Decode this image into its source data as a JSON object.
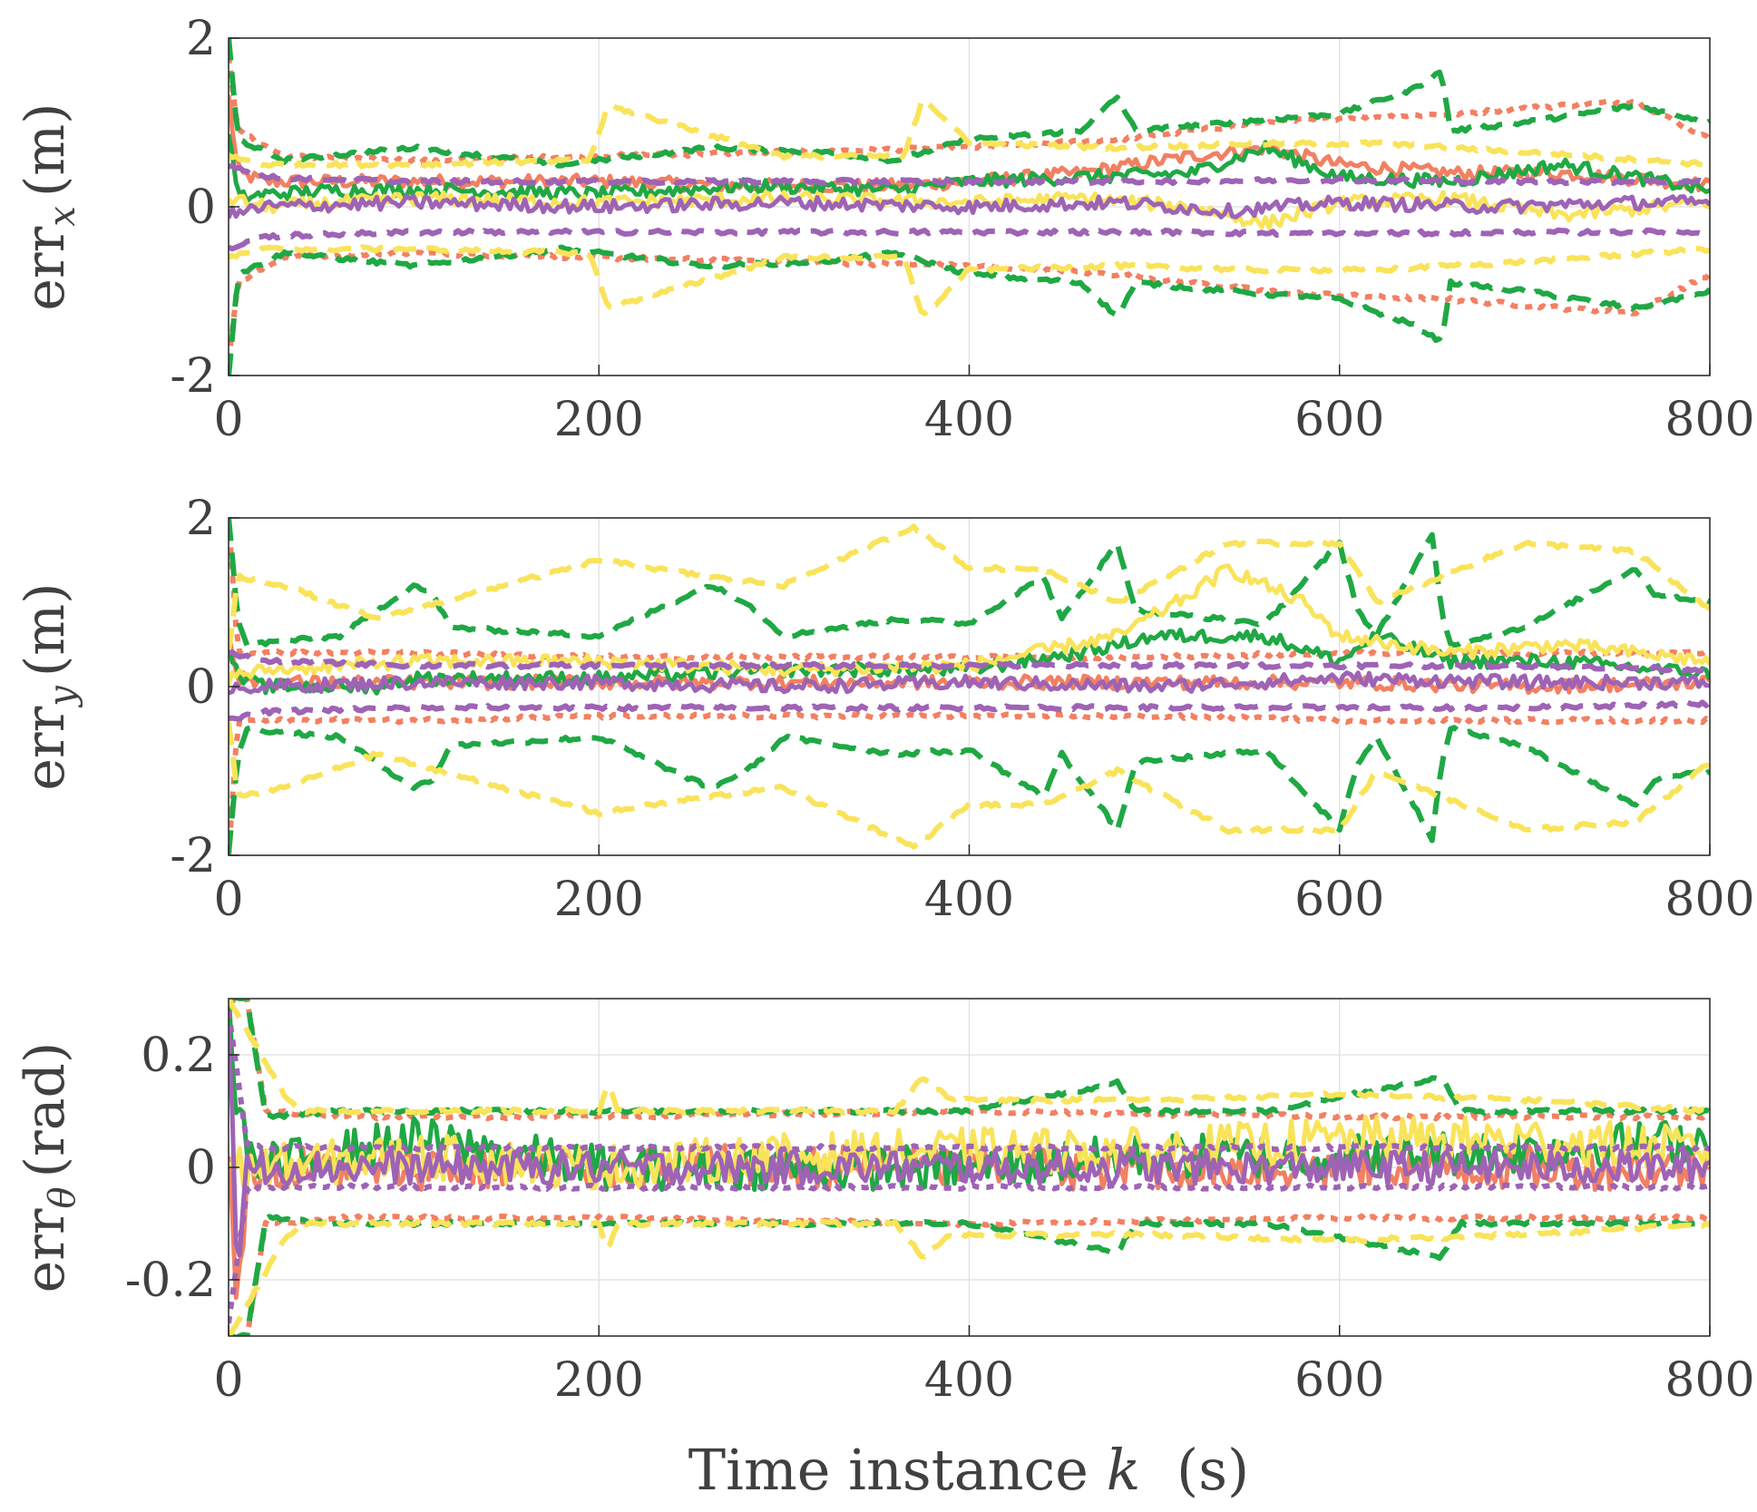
{
  "chart_data": [
    {
      "type": "line",
      "panel": "x",
      "ylabel_main": "err",
      "ylabel_sub": "x",
      "ylabel_unit": "(m)",
      "xlim": [
        0,
        800
      ],
      "ylim": [
        -2,
        2
      ],
      "xticks": [
        0,
        200,
        400,
        600,
        800
      ],
      "xtick_labels": [
        "0",
        "200",
        "400",
        "600",
        "800"
      ],
      "yticks": [
        -2,
        0,
        2
      ],
      "ytick_labels": [
        "-2",
        "0",
        "2"
      ],
      "grid": true,
      "series": [
        {
          "name": "orange estimate error",
          "color": "#F28062",
          "style": "solid",
          "x": [
            0,
            5,
            20,
            60,
            120,
            200,
            280,
            360,
            400,
            460,
            520,
            560,
            600,
            660,
            720,
            780,
            800
          ],
          "y": [
            1.3,
            0.4,
            0.3,
            0.3,
            0.3,
            0.3,
            0.25,
            0.25,
            0.3,
            0.4,
            0.6,
            0.7,
            0.5,
            0.4,
            0.4,
            0.3,
            0.25
          ]
        },
        {
          "name": "orange 3-sigma bound",
          "color": "#F28062",
          "style": "dotted",
          "x": [
            0,
            5,
            30,
            100,
            200,
            300,
            400,
            480,
            560,
            600,
            660,
            720,
            760,
            800
          ],
          "y": [
            1.8,
            0.9,
            0.6,
            0.55,
            0.6,
            0.65,
            0.7,
            0.8,
            1.0,
            1.05,
            1.1,
            1.2,
            1.25,
            0.8
          ],
          "symmetric": true
        },
        {
          "name": "green estimate error",
          "color": "#1FA844",
          "style": "solid",
          "x": [
            0,
            5,
            20,
            60,
            120,
            200,
            280,
            360,
            400,
            460,
            520,
            560,
            600,
            660,
            720,
            760,
            800
          ],
          "y": [
            0.9,
            0.1,
            0.15,
            0.2,
            0.2,
            0.15,
            0.25,
            0.2,
            0.3,
            0.35,
            0.4,
            0.7,
            0.35,
            0.3,
            0.5,
            0.35,
            0.2
          ]
        },
        {
          "name": "green 3-sigma bound",
          "color": "#1FA844",
          "style": "dashed",
          "x": [
            0,
            5,
            30,
            100,
            180,
            260,
            320,
            360,
            400,
            460,
            480,
            490,
            540,
            600,
            640,
            655,
            660,
            700,
            760,
            800
          ],
          "y": [
            2.0,
            0.8,
            0.55,
            0.7,
            0.5,
            0.7,
            0.65,
            0.55,
            0.8,
            0.9,
            1.3,
            0.9,
            1.0,
            1.1,
            1.4,
            1.6,
            0.9,
            1.0,
            1.2,
            1.0
          ],
          "symmetric": true
        },
        {
          "name": "yellow estimate error",
          "color": "#F9E35A",
          "style": "solid",
          "x": [
            0,
            20,
            100,
            200,
            300,
            400,
            460,
            520,
            560,
            600,
            660,
            720,
            800
          ],
          "y": [
            0.1,
            0.0,
            0.1,
            0.05,
            0.1,
            0.05,
            0.1,
            0.0,
            -0.2,
            0.05,
            0.1,
            -0.1,
            0.05
          ]
        },
        {
          "name": "yellow 3-sigma bound",
          "color": "#F9E35A",
          "style": "dashed",
          "x": [
            0,
            20,
            100,
            195,
            205,
            300,
            365,
            375,
            400,
            480,
            560,
            620,
            700,
            800
          ],
          "y": [
            0.6,
            0.5,
            0.5,
            0.55,
            1.2,
            0.6,
            0.6,
            1.3,
            0.75,
            0.7,
            0.75,
            0.75,
            0.65,
            0.5
          ],
          "symmetric": true
        },
        {
          "name": "purple estimate error",
          "color": "#9E63B5",
          "style": "solid",
          "x": [
            0,
            20,
            100,
            200,
            300,
            400,
            480,
            540,
            600,
            680,
            760,
            800
          ],
          "y": [
            -0.1,
            0.0,
            0.05,
            0.0,
            0.05,
            0.0,
            0.05,
            -0.05,
            0.05,
            0.0,
            0.05,
            0.05
          ]
        },
        {
          "name": "purple 3-sigma bound",
          "color": "#9E63B5",
          "style": "dashed",
          "x": [
            0,
            20,
            100,
            200,
            300,
            400,
            500,
            600,
            700,
            800
          ],
          "y": [
            0.5,
            0.35,
            0.3,
            0.3,
            0.3,
            0.3,
            0.3,
            0.32,
            0.3,
            0.3
          ],
          "symmetric": true
        }
      ]
    },
    {
      "type": "line",
      "panel": "y",
      "ylabel_main": "err",
      "ylabel_sub": "y",
      "ylabel_unit": "(m)",
      "xlim": [
        0,
        800
      ],
      "ylim": [
        -2,
        2
      ],
      "xticks": [
        0,
        200,
        400,
        600,
        800
      ],
      "xtick_labels": [
        "0",
        "200",
        "400",
        "600",
        "800"
      ],
      "yticks": [
        -2,
        0,
        2
      ],
      "ytick_labels": [
        "-2",
        "0",
        "2"
      ],
      "grid": true,
      "series": [
        {
          "name": "orange estimate error",
          "color": "#F28062",
          "style": "solid",
          "x": [
            0,
            5,
            20,
            100,
            200,
            300,
            400,
            500,
            600,
            700,
            800
          ],
          "y": [
            0.6,
            0.1,
            0.05,
            0.05,
            0.05,
            0.05,
            0.05,
            0.05,
            0.05,
            0.0,
            0.05
          ]
        },
        {
          "name": "orange 3-sigma bound",
          "color": "#F28062",
          "style": "dotted",
          "x": [
            0,
            5,
            30,
            100,
            200,
            300,
            400,
            500,
            600,
            700,
            800
          ],
          "y": [
            2.0,
            0.4,
            0.4,
            0.4,
            0.35,
            0.35,
            0.35,
            0.35,
            0.4,
            0.4,
            0.4
          ],
          "symmetric": true
        },
        {
          "name": "green estimate error",
          "color": "#1FA844",
          "style": "solid",
          "x": [
            0,
            5,
            20,
            80,
            100,
            200,
            300,
            400,
            460,
            500,
            560,
            600,
            620,
            660,
            720,
            800
          ],
          "y": [
            0.5,
            0.1,
            0.0,
            0.0,
            0.1,
            0.1,
            0.2,
            0.2,
            0.4,
            0.6,
            0.6,
            0.3,
            0.6,
            0.3,
            0.3,
            0.15
          ]
        },
        {
          "name": "green 3-sigma bound",
          "color": "#1FA844",
          "style": "dashed",
          "x": [
            0,
            5,
            10,
            60,
            100,
            110,
            120,
            200,
            260,
            280,
            300,
            360,
            400,
            440,
            450,
            480,
            490,
            560,
            600,
            610,
            620,
            650,
            655,
            660,
            700,
            760,
            770,
            800
          ],
          "y": [
            2.0,
            0.8,
            0.5,
            0.6,
            1.2,
            1.1,
            0.7,
            0.6,
            1.2,
            1.0,
            0.6,
            0.8,
            0.75,
            1.3,
            0.8,
            1.7,
            0.9,
            0.75,
            1.7,
            0.9,
            0.6,
            1.8,
            0.9,
            0.5,
            0.7,
            1.4,
            1.1,
            1.0
          ],
          "symmetric": true
        },
        {
          "name": "yellow estimate error",
          "color": "#F9E35A",
          "style": "solid",
          "x": [
            0,
            20,
            100,
            200,
            300,
            400,
            480,
            520,
            540,
            580,
            600,
            660,
            720,
            800
          ],
          "y": [
            0.1,
            0.2,
            0.3,
            0.3,
            0.2,
            0.25,
            0.6,
            1.1,
            1.4,
            1.0,
            0.6,
            0.4,
            0.5,
            0.3
          ]
        },
        {
          "name": "yellow 3-sigma bound",
          "color": "#F9E35A",
          "style": "dashed",
          "x": [
            0,
            5,
            30,
            80,
            200,
            260,
            300,
            370,
            400,
            440,
            480,
            540,
            600,
            620,
            700,
            760,
            800
          ],
          "y": [
            0.4,
            1.3,
            1.2,
            0.8,
            1.5,
            1.3,
            1.2,
            1.9,
            1.4,
            1.4,
            1.0,
            1.7,
            1.7,
            1.0,
            1.7,
            1.6,
            0.9
          ],
          "symmetric": true
        },
        {
          "name": "purple estimate error",
          "color": "#9E63B5",
          "style": "solid",
          "x": [
            0,
            20,
            100,
            200,
            300,
            400,
            500,
            600,
            700,
            800
          ],
          "y": [
            0.0,
            0.0,
            0.05,
            0.05,
            0.0,
            0.05,
            0.0,
            0.1,
            0.05,
            0.05
          ]
        },
        {
          "name": "purple 3-sigma bound",
          "color": "#9E63B5",
          "style": "dashed",
          "x": [
            0,
            20,
            100,
            200,
            300,
            400,
            500,
            600,
            700,
            800
          ],
          "y": [
            0.4,
            0.3,
            0.25,
            0.25,
            0.25,
            0.25,
            0.25,
            0.25,
            0.25,
            0.2
          ],
          "symmetric": true
        }
      ]
    },
    {
      "type": "line",
      "panel": "theta",
      "ylabel_main": "err",
      "ylabel_sub": "θ",
      "ylabel_unit": "(rad)",
      "xlabel": "Time instance",
      "xlabel_var": "k",
      "xlabel_unit": "(s)",
      "xlim": [
        0,
        800
      ],
      "ylim": [
        -0.3,
        0.3
      ],
      "xticks": [
        0,
        200,
        400,
        600,
        800
      ],
      "xtick_labels": [
        "0",
        "200",
        "400",
        "600",
        "800"
      ],
      "yticks": [
        -0.2,
        0,
        0.2
      ],
      "ytick_labels": [
        "-0.2",
        "0",
        "0.2"
      ],
      "grid": true,
      "series": [
        {
          "name": "orange estimate error",
          "color": "#F28062",
          "style": "solid",
          "x": [
            0,
            5,
            10,
            20,
            100,
            200,
            300,
            400,
            500,
            600,
            700,
            800
          ],
          "y": [
            0.0,
            -0.25,
            0.0,
            0.0,
            0.0,
            0.0,
            0.0,
            0.0,
            0.0,
            0.0,
            0.0,
            0.0
          ],
          "jitter": 0.04
        },
        {
          "name": "orange 3-sigma bound",
          "color": "#F28062",
          "style": "dotted",
          "x": [
            0,
            10,
            20,
            60,
            200,
            400,
            600,
            800
          ],
          "y": [
            0.3,
            0.3,
            0.1,
            0.09,
            0.09,
            0.1,
            0.09,
            0.09
          ],
          "symmetric": true
        },
        {
          "name": "green estimate error",
          "color": "#1FA844",
          "style": "solid",
          "x": [
            0,
            5,
            15,
            100,
            200,
            300,
            400,
            500,
            600,
            700,
            800
          ],
          "y": [
            0.28,
            0.1,
            0.0,
            0.05,
            0.0,
            0.0,
            0.0,
            0.02,
            0.02,
            0.03,
            0.05
          ],
          "jitter": 0.04
        },
        {
          "name": "green 3-sigma bound",
          "color": "#1FA844",
          "style": "dashed",
          "x": [
            0,
            10,
            20,
            60,
            200,
            400,
            480,
            490,
            560,
            640,
            655,
            665,
            760,
            800
          ],
          "y": [
            0.3,
            0.3,
            0.09,
            0.1,
            0.1,
            0.1,
            0.15,
            0.1,
            0.1,
            0.15,
            0.16,
            0.1,
            0.1,
            0.1
          ],
          "symmetric": true
        },
        {
          "name": "yellow estimate error",
          "color": "#F9E35A",
          "style": "solid",
          "x": [
            0,
            20,
            100,
            200,
            300,
            400,
            500,
            600,
            700,
            800
          ],
          "y": [
            0.0,
            0.0,
            0.02,
            0.0,
            0.02,
            0.03,
            0.03,
            0.05,
            0.05,
            0.03
          ],
          "jitter": 0.04
        },
        {
          "name": "yellow 3-sigma bound",
          "color": "#F9E35A",
          "style": "dashed",
          "x": [
            0,
            30,
            40,
            200,
            205,
            210,
            360,
            375,
            390,
            500,
            600,
            700,
            800
          ],
          "y": [
            0.3,
            0.13,
            0.1,
            0.1,
            0.15,
            0.1,
            0.1,
            0.16,
            0.12,
            0.12,
            0.13,
            0.12,
            0.1
          ],
          "symmetric": true
        },
        {
          "name": "purple estimate error",
          "color": "#9E63B5",
          "style": "solid",
          "x": [
            0,
            5,
            10,
            100,
            200,
            300,
            400,
            500,
            600,
            700,
            800
          ],
          "y": [
            0.25,
            -0.2,
            0.0,
            0.0,
            0.0,
            0.0,
            0.0,
            0.0,
            0.0,
            0.0,
            0.0
          ],
          "jitter": 0.03
        },
        {
          "name": "purple 3-sigma bound",
          "color": "#9E63B5",
          "style": "dotted",
          "x": [
            0,
            10,
            20,
            800
          ],
          "y": [
            0.28,
            0.04,
            0.035,
            0.035
          ],
          "symmetric": true
        }
      ]
    }
  ]
}
